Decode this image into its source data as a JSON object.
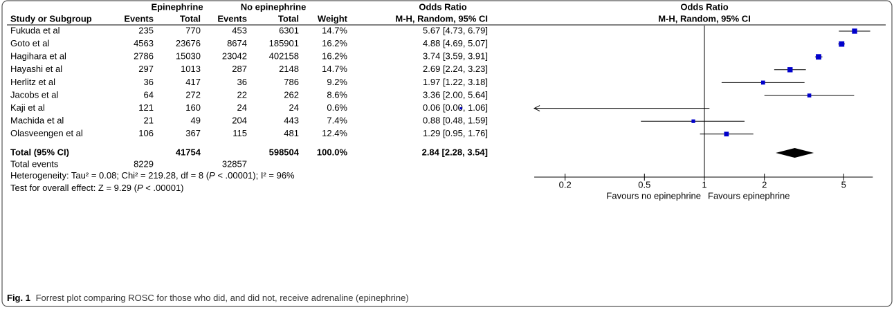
{
  "chart_data": {
    "type": "forest",
    "group_headers": [
      "Epinephrine",
      "No epinephrine",
      "Odds Ratio",
      "Odds Ratio"
    ],
    "method_headers": [
      "M-H, Random, 95% CI",
      "M-H, Random, 95% CI"
    ],
    "column_headers": [
      "Study or Subgroup",
      "Events",
      "Total",
      "Events",
      "Total",
      "Weight"
    ],
    "studies": [
      {
        "name": "Fukuda et al",
        "events_e": 235,
        "total_e": 770,
        "events_c": 453,
        "total_c": 6301,
        "weight": 14.7,
        "weight_label": "14.7%",
        "or": 5.67,
        "lower": 4.73,
        "upper": 6.79,
        "ci_label": "5.67 [4.73, 6.79]"
      },
      {
        "name": "Goto et al",
        "events_e": 4563,
        "total_e": 23676,
        "events_c": 8674,
        "total_c": 185901,
        "weight": 16.2,
        "weight_label": "16.2%",
        "or": 4.88,
        "lower": 4.69,
        "upper": 5.07,
        "ci_label": "4.88 [4.69, 5.07]"
      },
      {
        "name": "Hagihara et al",
        "events_e": 2786,
        "total_e": 15030,
        "events_c": 23042,
        "total_c": 402158,
        "weight": 16.2,
        "weight_label": "16.2%",
        "or": 3.74,
        "lower": 3.59,
        "upper": 3.91,
        "ci_label": "3.74 [3.59, 3.91]"
      },
      {
        "name": "Hayashi et al",
        "events_e": 297,
        "total_e": 1013,
        "events_c": 287,
        "total_c": 2148,
        "weight": 14.7,
        "weight_label": "14.7%",
        "or": 2.69,
        "lower": 2.24,
        "upper": 3.23,
        "ci_label": "2.69 [2.24, 3.23]"
      },
      {
        "name": "Herlitz et al",
        "events_e": 36,
        "total_e": 417,
        "events_c": 36,
        "total_c": 786,
        "weight": 9.2,
        "weight_label": "9.2%",
        "or": 1.97,
        "lower": 1.22,
        "upper": 3.18,
        "ci_label": "1.97 [1.22, 3.18]"
      },
      {
        "name": "Jacobs et al",
        "events_e": 64,
        "total_e": 272,
        "events_c": 22,
        "total_c": 262,
        "weight": 8.6,
        "weight_label": "8.6%",
        "or": 3.36,
        "lower": 2.0,
        "upper": 5.64,
        "ci_label": "3.36 [2.00, 5.64]"
      },
      {
        "name": "Kaji et al",
        "events_e": 121,
        "total_e": 160,
        "events_c": 24,
        "total_c": 24,
        "weight": 0.6,
        "weight_label": "0.6%",
        "or": 0.06,
        "lower": 0.0,
        "upper": 1.06,
        "ci_label": "0.06 [0.00, 1.06]"
      },
      {
        "name": "Machida et al",
        "events_e": 21,
        "total_e": 49,
        "events_c": 204,
        "total_c": 443,
        "weight": 7.4,
        "weight_label": "7.4%",
        "or": 0.88,
        "lower": 0.48,
        "upper": 1.59,
        "ci_label": "0.88 [0.48, 1.59]"
      },
      {
        "name": "Olasveengen et al",
        "events_e": 106,
        "total_e": 367,
        "events_c": 115,
        "total_c": 481,
        "weight": 12.4,
        "weight_label": "12.4%",
        "or": 1.29,
        "lower": 0.95,
        "upper": 1.76,
        "ci_label": "1.29 [0.95, 1.76]"
      }
    ],
    "total": {
      "name": "Total (95% CI)",
      "total_e": 41754,
      "total_c": 598504,
      "weight_label": "100.0%",
      "or": 2.84,
      "lower": 2.28,
      "upper": 3.54,
      "ci_label": "2.84 [2.28, 3.54]"
    },
    "total_events": {
      "label": "Total events",
      "events_e": 8229,
      "events_c": 32857
    },
    "heterogeneity": [
      "Heterogeneity: Tau² = 0.08; Chi² = 219.28, df = 8 (",
      "P",
      " < .00001); I² = 96%"
    ],
    "overall_effect": [
      "Test for overall effect: Z = 9.29 (",
      "P",
      " < .00001)"
    ],
    "xscale": "log",
    "xlim": [
      0.14,
      7
    ],
    "xticks": [
      0.2,
      0.5,
      1,
      2,
      5
    ],
    "favours_left": "Favours no epinephrine",
    "favours_right": "Favours epinephrine",
    "color": "#0000cc",
    "caption_label": "Fig. 1",
    "caption": "Forrest plot comparing ROSC for those who did, and did not, receive adrenaline (epinephrine)"
  }
}
